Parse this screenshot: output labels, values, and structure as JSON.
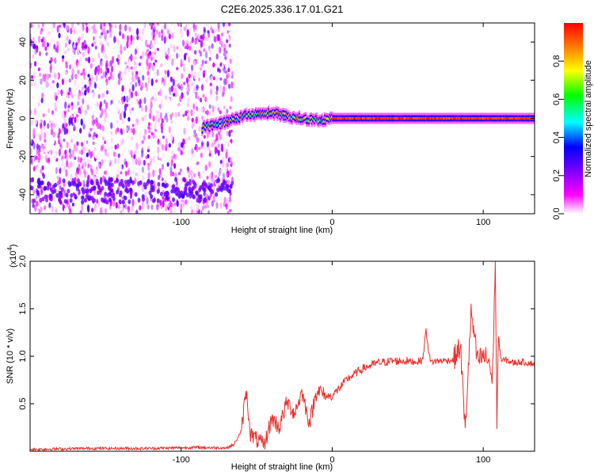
{
  "title": "C2E6.2025.336.17.01.G21",
  "chart_data": [
    {
      "type": "heatmap",
      "xlabel": "Height of straight line (km)",
      "ylabel": "Frequency (Hz)",
      "xlim": [
        -200,
        134
      ],
      "ylim": [
        -50,
        50
      ],
      "xticks": [
        -100,
        0,
        100
      ],
      "yticks": [
        -40,
        -20,
        0,
        20,
        40
      ],
      "colorbar": {
        "label": "Normalized spectral amplitude",
        "range": [
          0,
          1
        ],
        "ticks": [
          "0.0",
          "0.2",
          "0.4",
          "0.6",
          "0.8"
        ],
        "colors": [
          "#ffffff",
          "#ff00ff",
          "#7f00ff",
          "#0000ff",
          "#00ffff",
          "#00ff00",
          "#ffff00",
          "#ff7f00",
          "#ff0000"
        ]
      },
      "ridge": {
        "x": [
          -86,
          -80,
          -70,
          -60,
          -50,
          -40,
          -30,
          -20,
          -10,
          0,
          20,
          40,
          60,
          80,
          100,
          108,
          134
        ],
        "y": [
          -5,
          -4,
          -2,
          1,
          2,
          3,
          1,
          0,
          -1,
          0,
          0,
          0,
          0,
          0,
          0,
          0,
          0
        ]
      }
    },
    {
      "type": "line",
      "xlabel": "Height of straight line (km)",
      "ylabel": "SNR (10 * v/v)",
      "scale_label": "(x10",
      "scale_exp": "4",
      "scale_close": ")",
      "xlim": [
        -200,
        134
      ],
      "ylim": [
        0,
        20000
      ],
      "xticks": [
        -100,
        0,
        100
      ],
      "yticks": [
        "0.5",
        "1.0",
        "1.5",
        "2.0"
      ],
      "color": "#e8302e",
      "x": [
        -200,
        -160,
        -120,
        -90,
        -70,
        -65,
        -60,
        -57,
        -54,
        -50,
        -45,
        -40,
        -35,
        -30,
        -25,
        -20,
        -15,
        -10,
        -5,
        0,
        10,
        20,
        30,
        40,
        50,
        55,
        60,
        62,
        65,
        70,
        80,
        85,
        88,
        92,
        96,
        100,
        104,
        106,
        108,
        109,
        110,
        112,
        115,
        120,
        125,
        130,
        134
      ],
      "y": [
        200,
        300,
        300,
        400,
        350,
        700,
        2200,
        6500,
        1800,
        1200,
        600,
        3500,
        2500,
        5200,
        4000,
        6200,
        3000,
        6600,
        5800,
        5800,
        7600,
        8700,
        9300,
        9500,
        9500,
        9400,
        9600,
        12800,
        9400,
        9500,
        9600,
        11000,
        2000,
        14700,
        9500,
        10000,
        9500,
        7000,
        20000,
        2800,
        12000,
        9500,
        9600,
        9300,
        9400,
        9300,
        9200
      ]
    }
  ]
}
